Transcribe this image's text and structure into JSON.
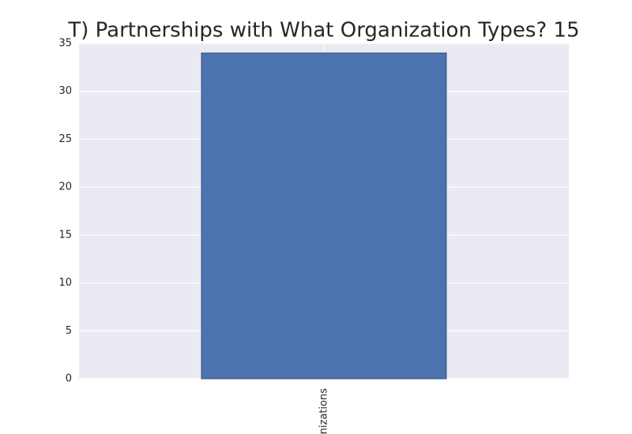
{
  "chart_data": {
    "type": "bar",
    "title": "T) Partnerships with What Organization Types? 15",
    "categories": [
      "anizations"
    ],
    "values": [
      34
    ],
    "color": "#4c72b0",
    "ylim": [
      0,
      35
    ],
    "yticks": [
      0,
      5,
      10,
      15,
      20,
      25,
      30,
      35
    ],
    "grid": true
  }
}
